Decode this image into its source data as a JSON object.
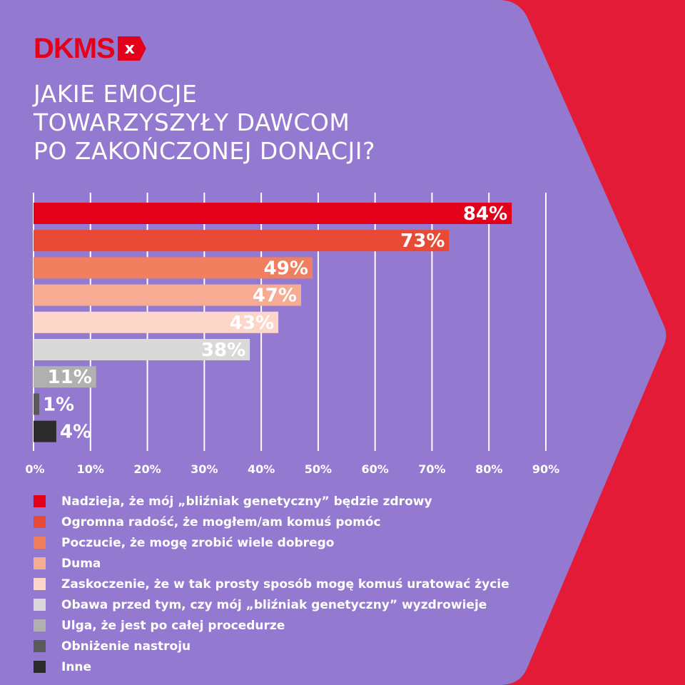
{
  "brand": {
    "logo_text": "DKMS",
    "logo_mark": "x",
    "colors": {
      "background": "#9479d1",
      "accent": "#e31b37"
    }
  },
  "title": {
    "lines": [
      "JAKIE EMOCJE",
      "TOWARZYSZYŁY DAWCOM",
      "PO ZAKOŃCZONEJ DONACJI?"
    ]
  },
  "chart_data": {
    "type": "bar",
    "orientation": "horizontal",
    "title": "JAKIE EMOCJE TOWARZYSZYŁY DAWCOM PO ZAKOŃCZONEJ DONACJI?",
    "categories": [
      "Nadzieja, że mój „bliźniak genetyczny” będzie zdrowy",
      "Ogromna radość, że mogłem/am komuś pomóc",
      "Poczucie, że mogę zrobić wiele dobrego",
      "Duma",
      "Zaskoczenie, że w tak prosty sposób mogę komuś uratować życie",
      "Obawa przed tym, czy mój „bliźniak genetyczny” wyzdrowieje",
      "Ulga, że jest po całej procedurze",
      "Obniżenie nastroju",
      "Inne"
    ],
    "values": [
      84,
      73,
      49,
      47,
      43,
      38,
      11,
      1,
      4
    ],
    "value_labels": [
      "84%",
      "73%",
      "49%",
      "47%",
      "43%",
      "38%",
      "11%",
      "1%",
      "4%"
    ],
    "colors": [
      "#e3001b",
      "#e84a36",
      "#ef7f5e",
      "#f5ac93",
      "#fcd6c8",
      "#d9d9d9",
      "#b0b0b0",
      "#5a5a5a",
      "#2b2b2b"
    ],
    "xlim": [
      0,
      90
    ],
    "xticks": [
      "0%",
      "10%",
      "20%",
      "30%",
      "40%",
      "50%",
      "60%",
      "70%",
      "80%",
      "90%"
    ],
    "grid": true,
    "legend": "bottom-left"
  }
}
